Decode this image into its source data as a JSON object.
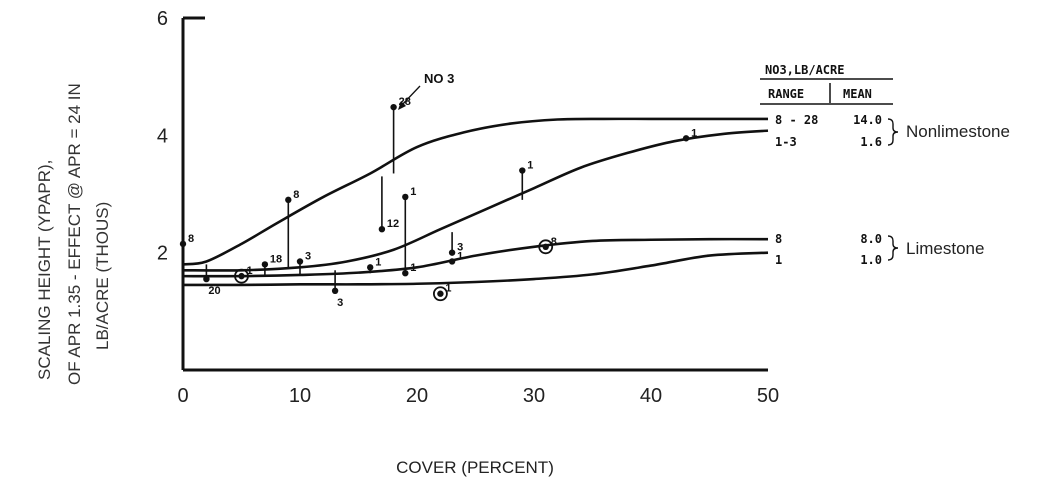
{
  "chart_data": {
    "type": "line",
    "xlabel": "COVER (PERCENT)",
    "ylabel_lines": [
      "SCALING HEIGHT (YPAPR),",
      "OF APR 1.35 - EFFECT @ APR = 24 IN",
      "LB/ACRE (THOUS)"
    ],
    "xlim": [
      0,
      50
    ],
    "ylim": [
      0,
      6
    ],
    "x_ticks": [
      "0",
      "10",
      "20",
      "30",
      "40",
      "50"
    ],
    "y_ticks": [
      "2",
      "4",
      "6"
    ],
    "annotation": "NO 3",
    "table": {
      "title": "NO3,LB/ACRE",
      "col_range": "RANGE",
      "col_mean": "MEAN"
    },
    "series": [
      {
        "label": "8 - 28",
        "mean": "14.0",
        "group": "Nonlimestone",
        "x": [
          0,
          2,
          5,
          8,
          12,
          16,
          20,
          24,
          28,
          32,
          36,
          40,
          44,
          48,
          50
        ],
        "y": [
          1.8,
          1.85,
          2.15,
          2.5,
          2.95,
          3.35,
          3.8,
          4.05,
          4.2,
          4.27,
          4.28,
          4.28,
          4.28,
          4.28,
          4.28
        ]
      },
      {
        "label": "1-3",
        "mean": "1.6",
        "group": "Nonlimestone",
        "x": [
          0,
          5,
          10,
          14,
          18,
          22,
          26,
          30,
          34,
          38,
          42,
          46,
          50
        ],
        "y": [
          1.7,
          1.7,
          1.75,
          1.85,
          2.05,
          2.4,
          2.75,
          3.1,
          3.45,
          3.7,
          3.9,
          4.02,
          4.08
        ]
      },
      {
        "label": "8",
        "mean": "8.0",
        "group": "Limestone",
        "x": [
          0,
          5,
          10,
          15,
          20,
          25,
          30,
          35,
          40,
          45,
          50
        ],
        "y": [
          1.6,
          1.6,
          1.62,
          1.66,
          1.75,
          1.95,
          2.1,
          2.2,
          2.22,
          2.23,
          2.23
        ]
      },
      {
        "label": "1",
        "mean": "1.0",
        "group": "Limestone",
        "x": [
          0,
          5,
          10,
          15,
          20,
          25,
          30,
          35,
          40,
          45,
          50
        ],
        "y": [
          1.45,
          1.45,
          1.46,
          1.46,
          1.47,
          1.5,
          1.55,
          1.63,
          1.78,
          1.95,
          2.0
        ]
      }
    ],
    "points": [
      {
        "x": 0,
        "y": 2.15,
        "label": "8",
        "ybase": 1.8,
        "circled": false
      },
      {
        "x": 2,
        "y": 1.55,
        "label": "20",
        "ybase": 1.8,
        "circled": false
      },
      {
        "x": 5,
        "y": 1.6,
        "label": "1",
        "circled": true
      },
      {
        "x": 7,
        "y": 1.8,
        "label": "18",
        "ybase": 1.6,
        "circled": false
      },
      {
        "x": 9,
        "y": 2.9,
        "label": "8",
        "ybase": 1.75,
        "circled": false
      },
      {
        "x": 10,
        "y": 1.85,
        "label": "3",
        "ybase": 1.62,
        "circled": false
      },
      {
        "x": 13,
        "y": 1.35,
        "label": "3",
        "ybase": 1.7,
        "circled": false
      },
      {
        "x": 16,
        "y": 1.75,
        "label": "1",
        "ybase": 1.65,
        "circled": false
      },
      {
        "x": 17,
        "y": 2.4,
        "label": "12",
        "ybase": 3.3,
        "circled": false
      },
      {
        "x": 18,
        "y": 4.48,
        "label": "28",
        "ybase": 3.35,
        "circled": false
      },
      {
        "x": 19,
        "y": 2.95,
        "label": "1",
        "ybase": 1.7,
        "circled": false
      },
      {
        "x": 19,
        "y": 1.65,
        "label": "1",
        "ybase": 1.75,
        "circled": false
      },
      {
        "x": 22,
        "y": 1.3,
        "label": "1",
        "circled": true
      },
      {
        "x": 23,
        "y": 2.0,
        "label": "3",
        "ybase": 2.35,
        "circled": false
      },
      {
        "x": 23,
        "y": 1.85,
        "label": "1",
        "ybase": 1.9,
        "circled": false
      },
      {
        "x": 29,
        "y": 3.4,
        "label": "1",
        "ybase": 2.9,
        "circled": false
      },
      {
        "x": 31,
        "y": 2.1,
        "label": "8",
        "circled": true
      },
      {
        "x": 43,
        "y": 3.95,
        "label": "1",
        "circled": false
      }
    ]
  }
}
